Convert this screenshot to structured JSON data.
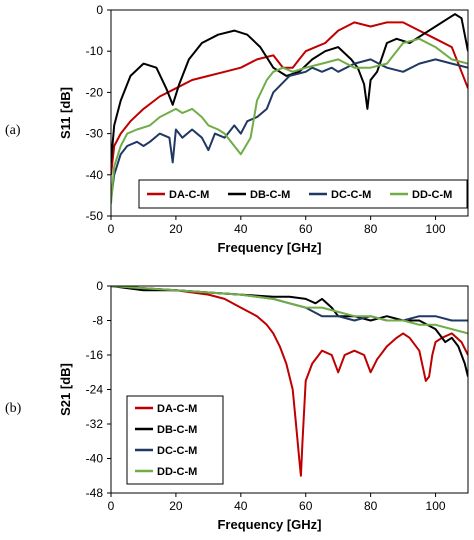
{
  "chart_data": [
    {
      "panel_label": "(a)",
      "type": "line",
      "xlabel": "Frequency [GHz]",
      "ylabel": "S11 [dB]",
      "xlim": [
        0,
        110
      ],
      "ylim": [
        -50,
        0
      ],
      "x_ticks": [
        0,
        20,
        40,
        60,
        80,
        100
      ],
      "y_ticks": [
        0,
        -10,
        -20,
        -30,
        -40,
        -50
      ],
      "grid": false,
      "legend_position": "bottom",
      "series": [
        {
          "name": "DA-C-M",
          "color": "#c00000",
          "x": [
            0,
            1,
            3,
            6,
            10,
            15,
            20,
            25,
            30,
            35,
            40,
            45,
            50,
            53,
            56,
            58,
            60,
            63,
            66,
            70,
            75,
            80,
            85,
            90,
            95,
            100,
            105,
            110
          ],
          "y": [
            -40,
            -33,
            -30,
            -27,
            -24,
            -21,
            -19,
            -17,
            -16,
            -15,
            -14,
            -12,
            -11,
            -14,
            -14,
            -12,
            -10,
            -9,
            -8,
            -5,
            -3,
            -4,
            -3,
            -3,
            -5,
            -7,
            -9,
            -19
          ]
        },
        {
          "name": "DB-C-M",
          "color": "#000000",
          "x": [
            0,
            1,
            3,
            6,
            10,
            14,
            17,
            19,
            21,
            24,
            28,
            33,
            38,
            42,
            46,
            50,
            54,
            58,
            62,
            66,
            70,
            74,
            76,
            78,
            79,
            80,
            82,
            85,
            88,
            92,
            96,
            100,
            104,
            106,
            108,
            110
          ],
          "y": [
            -37,
            -28,
            -22,
            -16,
            -13,
            -14,
            -19,
            -23,
            -18,
            -12,
            -8,
            -6,
            -5,
            -6,
            -9,
            -14,
            -16,
            -15,
            -12,
            -10,
            -9,
            -12,
            -14,
            -18,
            -24,
            -17,
            -15,
            -8,
            -7,
            -8,
            -6,
            -4,
            -2,
            -1,
            -2,
            -10
          ]
        },
        {
          "name": "DC-C-M",
          "color": "#203864",
          "x": [
            0,
            1,
            3,
            5,
            8,
            10,
            12,
            15,
            18,
            19,
            20,
            22,
            25,
            28,
            30,
            32,
            35,
            38,
            40,
            42,
            45,
            48,
            50,
            55,
            60,
            62,
            65,
            68,
            70,
            75,
            80,
            85,
            90,
            95,
            100,
            105,
            110
          ],
          "y": [
            -46,
            -40,
            -35,
            -33,
            -32,
            -33,
            -32,
            -30,
            -31,
            -37,
            -29,
            -31,
            -29,
            -31,
            -34,
            -30,
            -31,
            -28,
            -30,
            -27,
            -26,
            -24,
            -20,
            -16,
            -15,
            -14,
            -15,
            -14,
            -15,
            -13,
            -12,
            -14,
            -15,
            -13,
            -12,
            -13,
            -14
          ]
        },
        {
          "name": "DD-C-M",
          "color": "#70ad47",
          "x": [
            0,
            1,
            3,
            5,
            8,
            12,
            15,
            20,
            22,
            25,
            28,
            30,
            33,
            35,
            38,
            40,
            43,
            45,
            48,
            50,
            53,
            56,
            60,
            65,
            70,
            75,
            80,
            85,
            90,
            95,
            100,
            105,
            110
          ],
          "y": [
            -47,
            -38,
            -33,
            -30,
            -29,
            -28,
            -26,
            -24,
            -25,
            -24,
            -26,
            -28,
            -29,
            -30,
            -33,
            -35,
            -31,
            -22,
            -17,
            -15,
            -14,
            -15,
            -14,
            -13,
            -12,
            -14,
            -14,
            -13,
            -8,
            -7,
            -9,
            -12,
            -13
          ]
        }
      ]
    },
    {
      "panel_label": "(b)",
      "type": "line",
      "xlabel": "Frequency [GHz]",
      "ylabel": "S21 [dB]",
      "xlim": [
        0,
        110
      ],
      "ylim": [
        -48,
        0
      ],
      "x_ticks": [
        0,
        20,
        40,
        60,
        80,
        100
      ],
      "y_ticks": [
        0,
        -8,
        -16,
        -24,
        -32,
        -40,
        -48
      ],
      "grid": false,
      "legend_position": "left",
      "series": [
        {
          "name": "DA-C-M",
          "color": "#c00000",
          "x": [
            0,
            10,
            20,
            30,
            35,
            40,
            45,
            48,
            50,
            52,
            54,
            56,
            57,
            58,
            58.5,
            59,
            60,
            62,
            65,
            68,
            70,
            72,
            75,
            78,
            80,
            82,
            85,
            88,
            90,
            92,
            95,
            97,
            98,
            99,
            100,
            102,
            105,
            108,
            110
          ],
          "y": [
            0,
            -0.5,
            -1,
            -2,
            -3,
            -5,
            -7,
            -9,
            -11,
            -14,
            -18,
            -24,
            -32,
            -40,
            -44,
            -36,
            -22,
            -18,
            -15,
            -16,
            -20,
            -16,
            -15,
            -16,
            -20,
            -17,
            -14,
            -12,
            -11,
            -12,
            -15,
            -22,
            -21,
            -16,
            -13,
            -12,
            -11,
            -13,
            -16
          ]
        },
        {
          "name": "DB-C-M",
          "color": "#000000",
          "x": [
            0,
            10,
            20,
            30,
            40,
            50,
            55,
            60,
            63,
            65,
            68,
            70,
            75,
            80,
            85,
            90,
            95,
            100,
            103,
            105,
            107,
            109,
            110
          ],
          "y": [
            0,
            -1,
            -1,
            -1.5,
            -2,
            -2.5,
            -2.5,
            -3,
            -4,
            -3,
            -5,
            -7,
            -7,
            -8,
            -7,
            -8,
            -8,
            -10,
            -13,
            -12,
            -14,
            -18,
            -21
          ]
        },
        {
          "name": "DC-C-M",
          "color": "#203864",
          "x": [
            0,
            10,
            20,
            30,
            40,
            50,
            55,
            60,
            65,
            70,
            75,
            80,
            85,
            90,
            95,
            100,
            105,
            110
          ],
          "y": [
            0,
            -0.5,
            -1,
            -1.5,
            -2,
            -3,
            -4,
            -5,
            -7,
            -7,
            -8,
            -7,
            -8,
            -8,
            -7,
            -7,
            -8,
            -8
          ]
        },
        {
          "name": "DD-C-M",
          "color": "#70ad47",
          "x": [
            0,
            10,
            20,
            30,
            40,
            45,
            50,
            55,
            60,
            65,
            70,
            75,
            80,
            85,
            90,
            95,
            100,
            105,
            110
          ],
          "y": [
            0,
            -0.5,
            -1,
            -1.5,
            -2,
            -2.5,
            -3,
            -4,
            -5,
            -5,
            -6,
            -7,
            -7,
            -8,
            -8,
            -9,
            -9,
            -10,
            -11
          ]
        }
      ]
    }
  ]
}
